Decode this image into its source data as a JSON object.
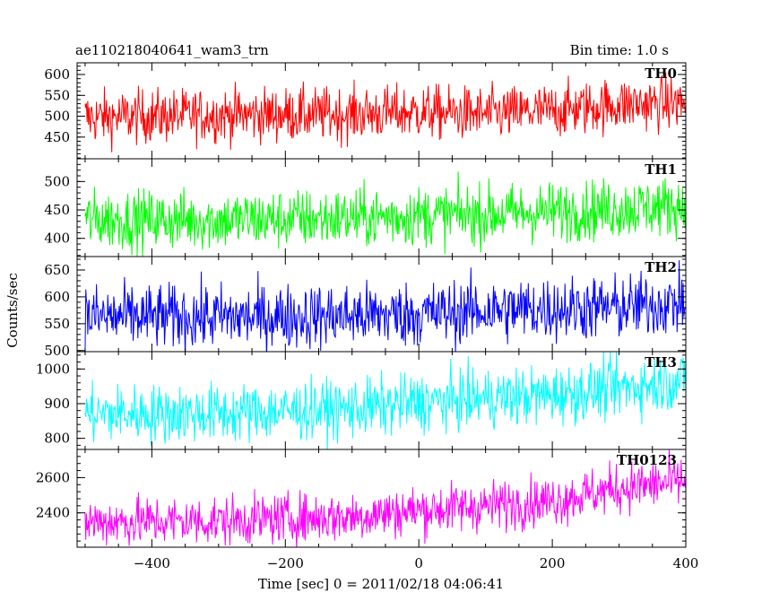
{
  "header": {
    "obs_id": "ae110218040641_wam3_trn",
    "bin_time": "Bin time: 1.0 s"
  },
  "axes": {
    "ylabel": "Counts/sec",
    "xlabel": "Time [sec] 0 = 2011/02/18 04:06:41"
  },
  "chart_data": [
    {
      "type": "line",
      "name": "TH0",
      "label": "TH0",
      "color": "#ff0000",
      "xlim": [
        -512,
        400
      ],
      "ylim": [
        398,
        628
      ],
      "yticks": [
        450,
        500,
        550,
        600
      ],
      "trend": {
        "x": [
          -500,
          -300,
          -100,
          0,
          100,
          200,
          300,
          400
        ],
        "y": [
          497,
          503,
          505,
          510,
          505,
          513,
          528,
          532
        ]
      },
      "noise": 32
    },
    {
      "type": "line",
      "name": "TH1",
      "label": "TH1",
      "color": "#00ff00",
      "xlim": [
        -512,
        400
      ],
      "ylim": [
        368,
        540
      ],
      "yticks": [
        400,
        450,
        500
      ],
      "trend": {
        "x": [
          -500,
          -300,
          -100,
          0,
          100,
          200,
          300,
          400
        ],
        "y": [
          433,
          432,
          436,
          440,
          442,
          447,
          452,
          458
        ]
      },
      "noise": 26
    },
    {
      "type": "line",
      "name": "TH2",
      "label": "TH2",
      "color": "#0000ff",
      "xlim": [
        -512,
        400
      ],
      "ylim": [
        498,
        675
      ],
      "yticks": [
        500,
        550,
        600,
        650
      ],
      "trend": {
        "x": [
          -500,
          -300,
          -100,
          0,
          100,
          200,
          300,
          400
        ],
        "y": [
          563,
          562,
          565,
          568,
          574,
          578,
          580,
          590
        ]
      },
      "noise": 30
    },
    {
      "type": "line",
      "name": "TH3",
      "label": "TH3",
      "color": "#00ffff",
      "xlim": [
        -512,
        400
      ],
      "ylim": [
        768,
        1050
      ],
      "yticks": [
        800,
        900,
        1000
      ],
      "trend": {
        "x": [
          -500,
          -300,
          -100,
          0,
          100,
          200,
          300,
          400
        ],
        "y": [
          870,
          872,
          885,
          902,
          915,
          925,
          945,
          968
        ]
      },
      "noise": 42
    },
    {
      "type": "line",
      "name": "TH0123",
      "label": "TH0123",
      "color": "#ff00ff",
      "xlim": [
        -512,
        400
      ],
      "ylim": [
        2205,
        2760
      ],
      "yticks": [
        2400,
        2600
      ],
      "trend": {
        "x": [
          -500,
          -300,
          -100,
          0,
          100,
          200,
          300,
          400
        ],
        "y": [
          2350,
          2355,
          2380,
          2415,
          2440,
          2470,
          2540,
          2580
        ]
      },
      "noise": 70
    }
  ],
  "xaxis": {
    "ticks": [
      -400,
      -200,
      0,
      200,
      400
    ],
    "tick_labels": [
      "−400",
      "−200",
      "0",
      "200",
      "400"
    ]
  }
}
